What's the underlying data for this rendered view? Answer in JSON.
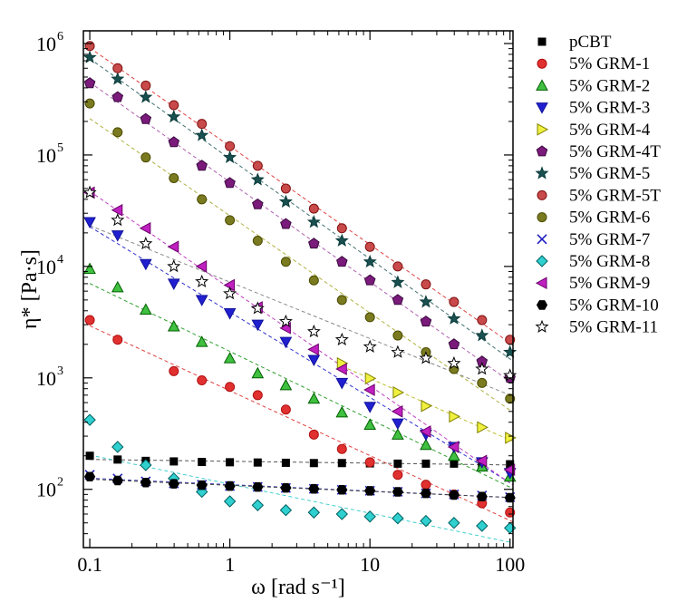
{
  "chart_data": {
    "type": "scatter",
    "x_scale": "log",
    "y_scale": "log",
    "xlim": [
      0.09,
      105
    ],
    "ylim": [
      30,
      1300000
    ],
    "xlabel": "ω [rad s⁻¹]",
    "ylabel": "η* [Pa·s]",
    "x_ticks": [
      {
        "value": 0.1,
        "label": "0.1"
      },
      {
        "value": 1,
        "label": "1"
      },
      {
        "value": 10,
        "label": "10"
      },
      {
        "value": 100,
        "label": "100"
      }
    ],
    "y_ticks": [
      {
        "value": 100,
        "base": "10",
        "exp": "2"
      },
      {
        "value": 1000,
        "base": "10",
        "exp": "3"
      },
      {
        "value": 10000,
        "base": "10",
        "exp": "4"
      },
      {
        "value": 100000,
        "base": "10",
        "exp": "5"
      },
      {
        "value": 1000000,
        "base": "10",
        "exp": "6"
      }
    ],
    "grid": false,
    "legend_position": "right",
    "x": [
      0.1,
      0.158,
      0.251,
      0.398,
      0.631,
      1.0,
      1.58,
      2.51,
      3.98,
      6.31,
      10.0,
      15.8,
      25.1,
      39.8,
      63.1,
      100.0
    ],
    "series": [
      {
        "name": "pCBT",
        "marker": "square",
        "color": "#000000",
        "fill": "#000000",
        "trend": "#555555",
        "values": [
          200,
          185,
          180,
          178,
          176,
          175,
          174,
          173,
          172,
          172,
          171,
          170,
          170,
          170,
          170,
          168
        ]
      },
      {
        "name": "5% GRM-1",
        "marker": "circle",
        "color": "#b01010",
        "fill": "#e03030",
        "trend": "#e04040",
        "values": [
          3300,
          2200,
          null,
          1150,
          950,
          830,
          700,
          520,
          310,
          230,
          175,
          135,
          110,
          90,
          75,
          62
        ]
      },
      {
        "name": "5% GRM-2",
        "marker": "triangle-up",
        "color": "#006000",
        "fill": "#40c040",
        "trend": "#30a030",
        "values": [
          9500,
          6500,
          4100,
          2900,
          2100,
          1500,
          1100,
          860,
          650,
          490,
          380,
          310,
          250,
          200,
          160,
          130
        ]
      },
      {
        "name": "5% GRM-3",
        "marker": "triangle-down",
        "color": "#10109a",
        "fill": "#2020d0",
        "trend": "#3030d0",
        "values": [
          25000,
          19000,
          10500,
          7000,
          5000,
          3800,
          3000,
          2100,
          1450,
          900,
          550,
          390,
          310,
          240,
          175,
          140
        ]
      },
      {
        "name": "5% GRM-4",
        "marker": "triangle-right",
        "color": "#808000",
        "fill": "#f0f040",
        "trend": "#c0c030",
        "values": [
          null,
          null,
          null,
          null,
          null,
          null,
          null,
          null,
          null,
          1350,
          990,
          740,
          560,
          450,
          360,
          290
        ]
      },
      {
        "name": "5% GRM-4T",
        "marker": "pentagon",
        "color": "#3a0a40",
        "fill": "#7a1a7a",
        "trend": "#b060b0",
        "values": [
          440000,
          330000,
          210000,
          130000,
          80000,
          56000,
          36000,
          24000,
          16000,
          11000,
          7500,
          5000,
          3200,
          2000,
          1400,
          1000
        ]
      },
      {
        "name": "5% GRM-5",
        "marker": "star",
        "color": "#0a3a3a",
        "fill": "#1a5050",
        "trend": "#407070",
        "values": [
          750000,
          480000,
          330000,
          220000,
          150000,
          95000,
          60000,
          38000,
          25000,
          17000,
          11000,
          7200,
          4800,
          3400,
          2400,
          1700
        ]
      },
      {
        "name": "5% GRM-5T",
        "marker": "circle",
        "color": "#801010",
        "fill": "#c84a4a",
        "trend": "#e04040",
        "values": [
          950000,
          600000,
          420000,
          280000,
          190000,
          120000,
          80000,
          50000,
          33000,
          22000,
          15000,
          10000,
          6900,
          4800,
          3300,
          2200
        ]
      },
      {
        "name": "5% GRM-6",
        "marker": "circle",
        "color": "#4a4a00",
        "fill": "#7a7a20",
        "trend": "#b0b040",
        "values": [
          290000,
          160000,
          95000,
          62000,
          40000,
          26000,
          17000,
          11000,
          7500,
          5000,
          3500,
          2400,
          1700,
          1200,
          900,
          650
        ]
      },
      {
        "name": "5% GRM-7",
        "marker": "x",
        "color": "#2020c0",
        "fill": "none",
        "trend": "#4040c0",
        "values": [
          135,
          125,
          118,
          113,
          110,
          107,
          105,
          103,
          101,
          99,
          97,
          95,
          92,
          90,
          88,
          85
        ]
      },
      {
        "name": "5% GRM-8",
        "marker": "diamond",
        "color": "#006060",
        "fill": "#30d0d0",
        "trend": "#40d0d0",
        "values": [
          420,
          240,
          165,
          125,
          95,
          78,
          72,
          65,
          62,
          60,
          57,
          55,
          52,
          50,
          47,
          45
        ]
      },
      {
        "name": "5% GRM-9",
        "marker": "triangle-left",
        "color": "#6a006a",
        "fill": "#c020c0",
        "trend": "#c040c0",
        "values": [
          46000,
          32000,
          22000,
          15000,
          10000,
          6800,
          4300,
          2800,
          1800,
          1200,
          780,
          500,
          330,
          240,
          180,
          150
        ]
      },
      {
        "name": "5% GRM-10",
        "marker": "hexagon-half",
        "color": "#000000",
        "fill": "#000000",
        "trend": "#444444",
        "values": [
          130,
          120,
          115,
          112,
          109,
          107,
          105,
          103,
          101,
          99,
          97,
          95,
          92,
          89,
          86,
          84
        ]
      },
      {
        "name": "5% GRM-11",
        "marker": "star-open",
        "color": "#000000",
        "fill": "#ffffff",
        "trend": "#888888",
        "values": [
          46000,
          26000,
          16000,
          10000,
          7300,
          5700,
          4200,
          3200,
          2600,
          2200,
          1900,
          1700,
          1500,
          1350,
          1200,
          1050
        ]
      }
    ]
  }
}
